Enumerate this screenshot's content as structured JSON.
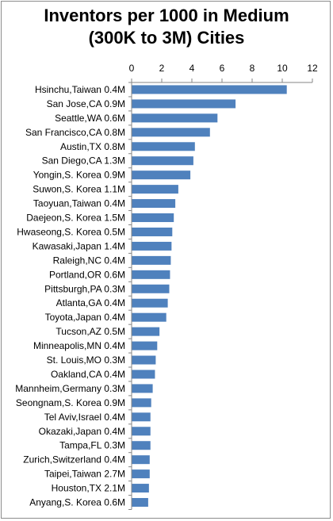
{
  "chart_data": {
    "type": "bar",
    "orientation": "horizontal",
    "title_lines": [
      "Inventors per 1000 in Medium",
      "(300K to 3M) Cities"
    ],
    "categories": [
      "Hsinchu,Taiwan 0.4M",
      "San Jose,CA 0.9M",
      "Seattle,WA 0.6M",
      "San Francisco,CA 0.8M",
      "Austin,TX 0.8M",
      "San Diego,CA 1.3M",
      "Yongin,S. Korea 0.9M",
      "Suwon,S. Korea 1.1M",
      "Taoyuan,Taiwan  0.4M",
      "Daejeon,S. Korea 1.5M",
      "Hwaseong,S. Korea 0.5M",
      "Kawasaki,Japan 1.4M",
      "Raleigh,NC 0.4M",
      "Portland,OR 0.6M",
      "Pittsburgh,PA 0.3M",
      "Atlanta,GA 0.4M",
      "Toyota,Japan 0.4M",
      "Tucson,AZ 0.5M",
      "Minneapolis,MN 0.4M",
      "St. Louis,MO 0.3M",
      "Oakland,CA 0.4M",
      "Mannheim,Germany 0.3M",
      "Seongnam,S. Korea 0.9M",
      "Tel Aviv,Israel 0.4M",
      "Okazaki,Japan 0.4M",
      "Tampa,FL 0.3M",
      "Zurich,Switzerland 0.4M",
      "Taipei,Taiwan 2.7M",
      "Houston,TX 2.1M",
      "Anyang,S. Korea 0.6M"
    ],
    "values": [
      10.3,
      6.9,
      5.7,
      5.2,
      4.2,
      4.1,
      3.9,
      3.1,
      2.9,
      2.8,
      2.7,
      2.65,
      2.6,
      2.55,
      2.5,
      2.4,
      2.3,
      1.85,
      1.7,
      1.6,
      1.55,
      1.4,
      1.3,
      1.25,
      1.25,
      1.25,
      1.2,
      1.2,
      1.15,
      1.1
    ],
    "xlim": [
      0,
      12
    ],
    "xticks": [
      0,
      2,
      4,
      6,
      8,
      10,
      12
    ],
    "xaxis_position": "top",
    "grid": false,
    "legend": "none",
    "bar_color": "#4f81bd"
  }
}
